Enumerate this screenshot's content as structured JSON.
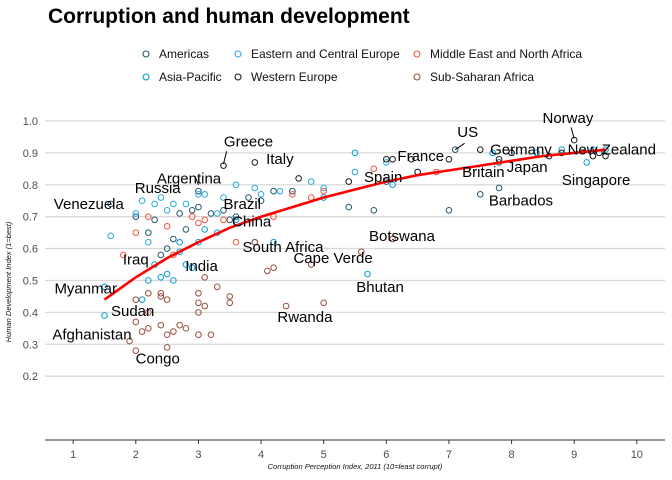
{
  "chart_data": {
    "type": "scatter",
    "title": "Corruption and human development",
    "xlabel": "Corruption Perception Index, 2011 (10=least corrupt)",
    "ylabel": "Human Development Index (1=best)",
    "xlim": [
      0.55,
      10.45
    ],
    "ylim": [
      0.0,
      1.05
    ],
    "x_ticks": [
      1,
      2,
      3,
      4,
      5,
      6,
      7,
      8,
      9,
      10
    ],
    "y_ticks": [
      0.2,
      0.3,
      0.4,
      0.5,
      0.6,
      0.7,
      0.8,
      0.9,
      1.0
    ],
    "grid": "horizontal",
    "legend_position": "top",
    "series": [
      {
        "name": "Americas",
        "color": "#24576D",
        "points": [
          [
            1.6,
            0.74
          ],
          [
            2.0,
            0.7
          ],
          [
            2.2,
            0.65
          ],
          [
            2.3,
            0.69
          ],
          [
            2.4,
            0.58
          ],
          [
            2.5,
            0.6
          ],
          [
            2.6,
            0.63
          ],
          [
            2.7,
            0.71
          ],
          [
            2.8,
            0.66
          ],
          [
            2.9,
            0.72
          ],
          [
            3.0,
            0.73
          ],
          [
            3.0,
            0.78
          ],
          [
            3.2,
            0.71
          ],
          [
            3.4,
            0.72
          ],
          [
            3.5,
            0.69
          ],
          [
            3.6,
            0.7
          ],
          [
            3.8,
            0.76
          ],
          [
            4.0,
            0.75
          ],
          [
            4.2,
            0.78
          ],
          [
            4.5,
            0.78
          ],
          [
            5.4,
            0.73
          ],
          [
            5.8,
            0.72
          ],
          [
            6.0,
            0.81
          ],
          [
            7.0,
            0.72
          ],
          [
            7.1,
            0.91
          ],
          [
            7.5,
            0.77
          ],
          [
            7.8,
            0.79
          ],
          [
            7.8,
            0.87
          ]
        ]
      },
      {
        "name": "Asia-Pacific",
        "color": "#099DD7",
        "points": [
          [
            1.5,
            0.39
          ],
          [
            1.5,
            0.48
          ],
          [
            2.1,
            0.44
          ],
          [
            2.2,
            0.5
          ],
          [
            2.3,
            0.55
          ],
          [
            2.4,
            0.51
          ],
          [
            2.5,
            0.52
          ],
          [
            2.6,
            0.5
          ],
          [
            2.7,
            0.59
          ],
          [
            2.7,
            0.62
          ],
          [
            2.8,
            0.55
          ],
          [
            2.9,
            0.54
          ],
          [
            3.0,
            0.62
          ],
          [
            3.1,
            0.66
          ],
          [
            3.3,
            0.65
          ],
          [
            3.6,
            0.69
          ],
          [
            3.9,
            0.62
          ],
          [
            4.2,
            0.62
          ],
          [
            5.0,
            0.76
          ],
          [
            5.5,
            0.9
          ],
          [
            5.7,
            0.52
          ],
          [
            6.1,
            0.8
          ],
          [
            7.7,
            0.9
          ],
          [
            8.0,
            0.9
          ],
          [
            8.4,
            0.9
          ],
          [
            8.8,
            0.91
          ],
          [
            9.2,
            0.87
          ],
          [
            9.3,
            0.91
          ],
          [
            9.5,
            0.91
          ]
        ]
      },
      {
        "name": "Eastern and Central Europe",
        "color": "#28AADC",
        "points": [
          [
            1.6,
            0.64
          ],
          [
            2.0,
            0.71
          ],
          [
            2.1,
            0.75
          ],
          [
            2.2,
            0.62
          ],
          [
            2.3,
            0.74
          ],
          [
            2.4,
            0.76
          ],
          [
            2.5,
            0.72
          ],
          [
            2.6,
            0.74
          ],
          [
            2.8,
            0.74
          ],
          [
            3.0,
            0.77
          ],
          [
            3.1,
            0.77
          ],
          [
            3.3,
            0.71
          ],
          [
            3.4,
            0.76
          ],
          [
            3.6,
            0.8
          ],
          [
            3.9,
            0.79
          ],
          [
            4.0,
            0.77
          ],
          [
            4.3,
            0.78
          ],
          [
            4.8,
            0.81
          ],
          [
            5.0,
            0.79
          ],
          [
            5.5,
            0.84
          ],
          [
            6.0,
            0.87
          ],
          [
            6.5,
            0.84
          ]
        ]
      },
      {
        "name": "Western Europe",
        "color": "#1B1B1B",
        "points": [
          [
            3.4,
            0.86
          ],
          [
            3.9,
            0.87
          ],
          [
            4.6,
            0.82
          ],
          [
            5.4,
            0.81
          ],
          [
            6.0,
            0.88
          ],
          [
            6.1,
            0.88
          ],
          [
            6.4,
            0.88
          ],
          [
            6.5,
            0.84
          ],
          [
            7.0,
            0.88
          ],
          [
            7.5,
            0.91
          ],
          [
            7.8,
            0.88
          ],
          [
            8.0,
            0.9
          ],
          [
            8.6,
            0.89
          ],
          [
            8.8,
            0.9
          ],
          [
            9.0,
            0.94
          ],
          [
            9.3,
            0.89
          ],
          [
            9.4,
            0.9
          ],
          [
            9.5,
            0.89
          ]
        ]
      },
      {
        "name": "Middle East and North Africa",
        "color": "#F2583F",
        "points": [
          [
            1.8,
            0.58
          ],
          [
            2.0,
            0.65
          ],
          [
            2.2,
            0.7
          ],
          [
            2.5,
            0.67
          ],
          [
            2.6,
            0.58
          ],
          [
            2.9,
            0.7
          ],
          [
            3.0,
            0.68
          ],
          [
            3.1,
            0.69
          ],
          [
            3.4,
            0.69
          ],
          [
            3.6,
            0.62
          ],
          [
            4.2,
            0.7
          ],
          [
            4.5,
            0.77
          ],
          [
            4.8,
            0.76
          ],
          [
            5.0,
            0.78
          ],
          [
            5.8,
            0.85
          ],
          [
            6.8,
            0.84
          ]
        ]
      },
      {
        "name": "Sub-Saharan Africa",
        "color": "#96503F",
        "points": [
          [
            1.9,
            0.31
          ],
          [
            2.0,
            0.28
          ],
          [
            2.0,
            0.37
          ],
          [
            2.0,
            0.44
          ],
          [
            2.1,
            0.34
          ],
          [
            2.2,
            0.35
          ],
          [
            2.2,
            0.4
          ],
          [
            2.2,
            0.46
          ],
          [
            2.4,
            0.36
          ],
          [
            2.4,
            0.45
          ],
          [
            2.4,
            0.46
          ],
          [
            2.5,
            0.29
          ],
          [
            2.5,
            0.33
          ],
          [
            2.5,
            0.44
          ],
          [
            2.6,
            0.34
          ],
          [
            2.7,
            0.36
          ],
          [
            2.8,
            0.35
          ],
          [
            3.0,
            0.33
          ],
          [
            3.0,
            0.4
          ],
          [
            3.0,
            0.43
          ],
          [
            3.0,
            0.46
          ],
          [
            3.1,
            0.42
          ],
          [
            3.1,
            0.51
          ],
          [
            3.2,
            0.33
          ],
          [
            3.3,
            0.48
          ],
          [
            3.5,
            0.45
          ],
          [
            3.5,
            0.43
          ],
          [
            3.9,
            0.62
          ],
          [
            4.1,
            0.53
          ],
          [
            4.2,
            0.54
          ],
          [
            4.4,
            0.42
          ],
          [
            4.8,
            0.55
          ],
          [
            5.0,
            0.43
          ],
          [
            5.6,
            0.59
          ],
          [
            6.1,
            0.63
          ]
        ]
      }
    ],
    "legend": [
      {
        "name": "Americas",
        "color": "#24576D"
      },
      {
        "name": "Eastern and Central Europe",
        "color": "#28AADC"
      },
      {
        "name": "Middle East and North Africa",
        "color": "#F2583F"
      },
      {
        "name": "Asia-Pacific",
        "color": "#099DD7"
      },
      {
        "name": "Western Europe",
        "color": "#1B1B1B"
      },
      {
        "name": "Sub-Saharan Africa",
        "color": "#96503F"
      }
    ],
    "trend_line": {
      "color": "#FF0000",
      "points": [
        [
          1.5,
          0.44
        ],
        [
          2,
          0.51
        ],
        [
          2.5,
          0.57
        ],
        [
          3,
          0.62
        ],
        [
          3.5,
          0.665
        ],
        [
          4,
          0.7
        ],
        [
          4.5,
          0.73
        ],
        [
          5,
          0.76
        ],
        [
          5.5,
          0.785
        ],
        [
          6,
          0.81
        ],
        [
          6.5,
          0.83
        ],
        [
          7,
          0.845
        ],
        [
          7.5,
          0.86
        ],
        [
          8,
          0.875
        ],
        [
          8.5,
          0.89
        ],
        [
          9,
          0.9
        ],
        [
          9.5,
          0.91
        ]
      ]
    },
    "annotations": [
      {
        "text": "Greece",
        "x": 3.4,
        "y": 0.86
      },
      {
        "text": "Italy",
        "x": 3.9,
        "y": 0.87
      },
      {
        "text": "Argentina",
        "x": 3.0,
        "y": 0.8
      },
      {
        "text": "Russia",
        "x": 2.4,
        "y": 0.76
      },
      {
        "text": "Brazil",
        "x": 3.8,
        "y": 0.72
      },
      {
        "text": "Venezuela",
        "x": 1.9,
        "y": 0.73
      },
      {
        "text": "China",
        "x": 3.6,
        "y": 0.69
      },
      {
        "text": "Iraq",
        "x": 1.8,
        "y": 0.57
      },
      {
        "text": "India",
        "x": 3.1,
        "y": 0.55
      },
      {
        "text": "South Africa",
        "x": 4.1,
        "y": 0.62
      },
      {
        "text": "Cape Verde",
        "x": 5.1,
        "y": 0.57
      },
      {
        "text": "Myanmar",
        "x": 1.5,
        "y": 0.48
      },
      {
        "text": "Sudan",
        "x": 1.6,
        "y": 0.41
      },
      {
        "text": "Afghanistan",
        "x": 1.5,
        "y": 0.4
      },
      {
        "text": "Congo",
        "x": 2.0,
        "y": 0.29
      },
      {
        "text": "Rwanda",
        "x": 5.0,
        "y": 0.43
      },
      {
        "text": "Bhutan",
        "x": 5.7,
        "y": 0.52
      },
      {
        "text": "Botswana",
        "x": 6.1,
        "y": 0.63
      },
      {
        "text": "Spain",
        "x": 6.2,
        "y": 0.88
      },
      {
        "text": "France",
        "x": 7.0,
        "y": 0.88
      },
      {
        "text": "US",
        "x": 7.1,
        "y": 0.91
      },
      {
        "text": "Germany",
        "x": 8.0,
        "y": 0.9
      },
      {
        "text": "Britain",
        "x": 7.8,
        "y": 0.87
      },
      {
        "text": "Japan",
        "x": 8.0,
        "y": 0.9
      },
      {
        "text": "Barbados",
        "x": 7.8,
        "y": 0.79
      },
      {
        "text": "Norway",
        "x": 9.0,
        "y": 0.94
      },
      {
        "text": "New Zealand",
        "x": 9.5,
        "y": 0.91
      },
      {
        "text": "Singapore",
        "x": 9.2,
        "y": 0.87
      }
    ]
  }
}
